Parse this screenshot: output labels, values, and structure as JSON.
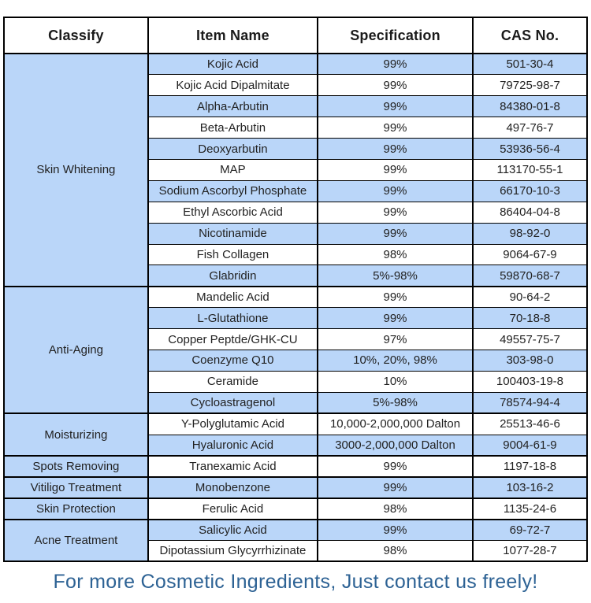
{
  "table": {
    "columns": [
      "Classify",
      "Item Name",
      "Specification",
      "CAS No."
    ],
    "sections": [
      {
        "classify": "Skin Whitening",
        "items": [
          {
            "name": "Kojic Acid",
            "spec": "99%",
            "cas": "501-30-4"
          },
          {
            "name": "Kojic Acid Dipalmitate",
            "spec": "99%",
            "cas": "79725-98-7"
          },
          {
            "name": "Alpha-Arbutin",
            "spec": "99%",
            "cas": "84380-01-8"
          },
          {
            "name": "Beta-Arbutin",
            "spec": "99%",
            "cas": "497-76-7"
          },
          {
            "name": "Deoxyarbutin",
            "spec": "99%",
            "cas": "53936-56-4"
          },
          {
            "name": "MAP",
            "spec": "99%",
            "cas": "113170-55-1"
          },
          {
            "name": "Sodium Ascorbyl Phosphate",
            "spec": "99%",
            "cas": "66170-10-3"
          },
          {
            "name": "Ethyl Ascorbic Acid",
            "spec": "99%",
            "cas": "86404-04-8"
          },
          {
            "name": "Nicotinamide",
            "spec": "99%",
            "cas": "98-92-0"
          },
          {
            "name": "Fish Collagen",
            "spec": "98%",
            "cas": "9064-67-9"
          },
          {
            "name": "Glabridin",
            "spec": "5%-98%",
            "cas": "59870-68-7"
          }
        ]
      },
      {
        "classify": "Anti-Aging",
        "items": [
          {
            "name": "Mandelic Acid",
            "spec": "99%",
            "cas": "90-64-2"
          },
          {
            "name": "L-Glutathione",
            "spec": "99%",
            "cas": "70-18-8"
          },
          {
            "name": "Copper Peptde/GHK-CU",
            "spec": "97%",
            "cas": "49557-75-7"
          },
          {
            "name": "Coenzyme Q10",
            "spec": "10%, 20%, 98%",
            "cas": "303-98-0"
          },
          {
            "name": "Ceramide",
            "spec": "10%",
            "cas": "100403-19-8"
          },
          {
            "name": "Cycloastragenol",
            "spec": "5%-98%",
            "cas": "78574-94-4"
          }
        ]
      },
      {
        "classify": "Moisturizing",
        "items": [
          {
            "name": "Y-Polyglutamic Acid",
            "spec": "10,000-2,000,000 Dalton",
            "cas": "25513-46-6"
          },
          {
            "name": "Hyaluronic Acid",
            "spec": "3000-2,000,000 Dalton",
            "cas": "9004-61-9"
          }
        ]
      },
      {
        "classify": "Spots Removing",
        "items": [
          {
            "name": "Tranexamic Acid",
            "spec": "99%",
            "cas": "1197-18-8"
          }
        ]
      },
      {
        "classify": "Vitiligo Treatment",
        "items": [
          {
            "name": "Monobenzone",
            "spec": "99%",
            "cas": "103-16-2"
          }
        ]
      },
      {
        "classify": "Skin Protection",
        "items": [
          {
            "name": "Ferulic Acid",
            "spec": "98%",
            "cas": "1135-24-6"
          }
        ]
      },
      {
        "classify": "Acne Treatment",
        "items": [
          {
            "name": "Salicylic Acid",
            "spec": "99%",
            "cas": "69-72-7"
          },
          {
            "name": "Dipotassium Glycyrrhizinate",
            "spec": "98%",
            "cas": "1077-28-7"
          }
        ]
      }
    ]
  },
  "footer": {
    "text": "For more Cosmetic Ingredients, Just contact us freely!"
  },
  "colors": {
    "row_blue": "#bad6f9",
    "border": "#000000",
    "footer_text": "#2d6294",
    "cell_text": "#222222"
  }
}
